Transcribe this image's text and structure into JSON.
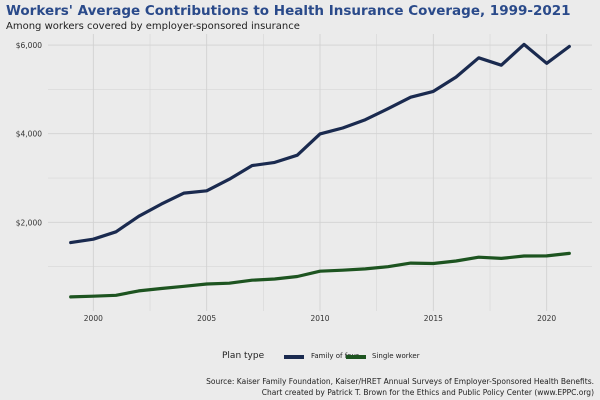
{
  "header": {
    "title": "Workers' Average Contributions to Health Insurance Coverage, 1999-2021",
    "subtitle": "Among workers covered by employer-sponsored insurance"
  },
  "legend": {
    "title": "Plan type",
    "items": [
      "Family of four",
      "Single worker"
    ]
  },
  "caption": {
    "line1": "Source: Kaiser Family Foundation, Kaiser/HRET Annual Surveys of Employer-Sponsored Health Benefits.",
    "line2": "Chart created by Patrick T. Brown for the Ethics and Public Policy Center (www.EPPC.org)"
  },
  "colors": {
    "family": "#1a2a4f",
    "single": "#1d5420",
    "panel": "#ebebeb",
    "grid": "#d2d2d2"
  },
  "chart_data": {
    "type": "line",
    "title": "Workers' Average Contributions to Health Insurance Coverage, 1999-2021",
    "subtitle": "Among workers covered by employer-sponsored insurance",
    "xlabel": "",
    "ylabel": "",
    "x": [
      1999,
      2000,
      2001,
      2002,
      2003,
      2004,
      2005,
      2006,
      2007,
      2008,
      2009,
      2010,
      2011,
      2012,
      2013,
      2014,
      2015,
      2016,
      2017,
      2018,
      2019,
      2020,
      2021
    ],
    "xticks": [
      2000,
      2005,
      2010,
      2015,
      2020
    ],
    "yticks": [
      2000,
      4000,
      6000
    ],
    "ytick_labels": [
      "$2,000",
      "$4,000",
      "$6,000"
    ],
    "xlim": [
      1998.0,
      2022.0
    ],
    "ylim": [
      0,
      6250
    ],
    "grid": true,
    "legend_position": "bottom",
    "series": [
      {
        "name": "Family of four",
        "values": [
          1543,
          1619,
          1787,
          2137,
          2412,
          2661,
          2713,
          2973,
          3281,
          3354,
          3515,
          3997,
          4129,
          4316,
          4565,
          4823,
          4955,
          5277,
          5714,
          5547,
          6015,
          5588,
          5969
        ]
      },
      {
        "name": "Single worker",
        "values": [
          318,
          334,
          355,
          454,
          508,
          558,
          610,
          627,
          694,
          721,
          779,
          899,
          921,
          951,
          999,
          1081,
          1071,
          1129,
          1213,
          1186,
          1242,
          1243,
          1299
        ]
      }
    ]
  }
}
